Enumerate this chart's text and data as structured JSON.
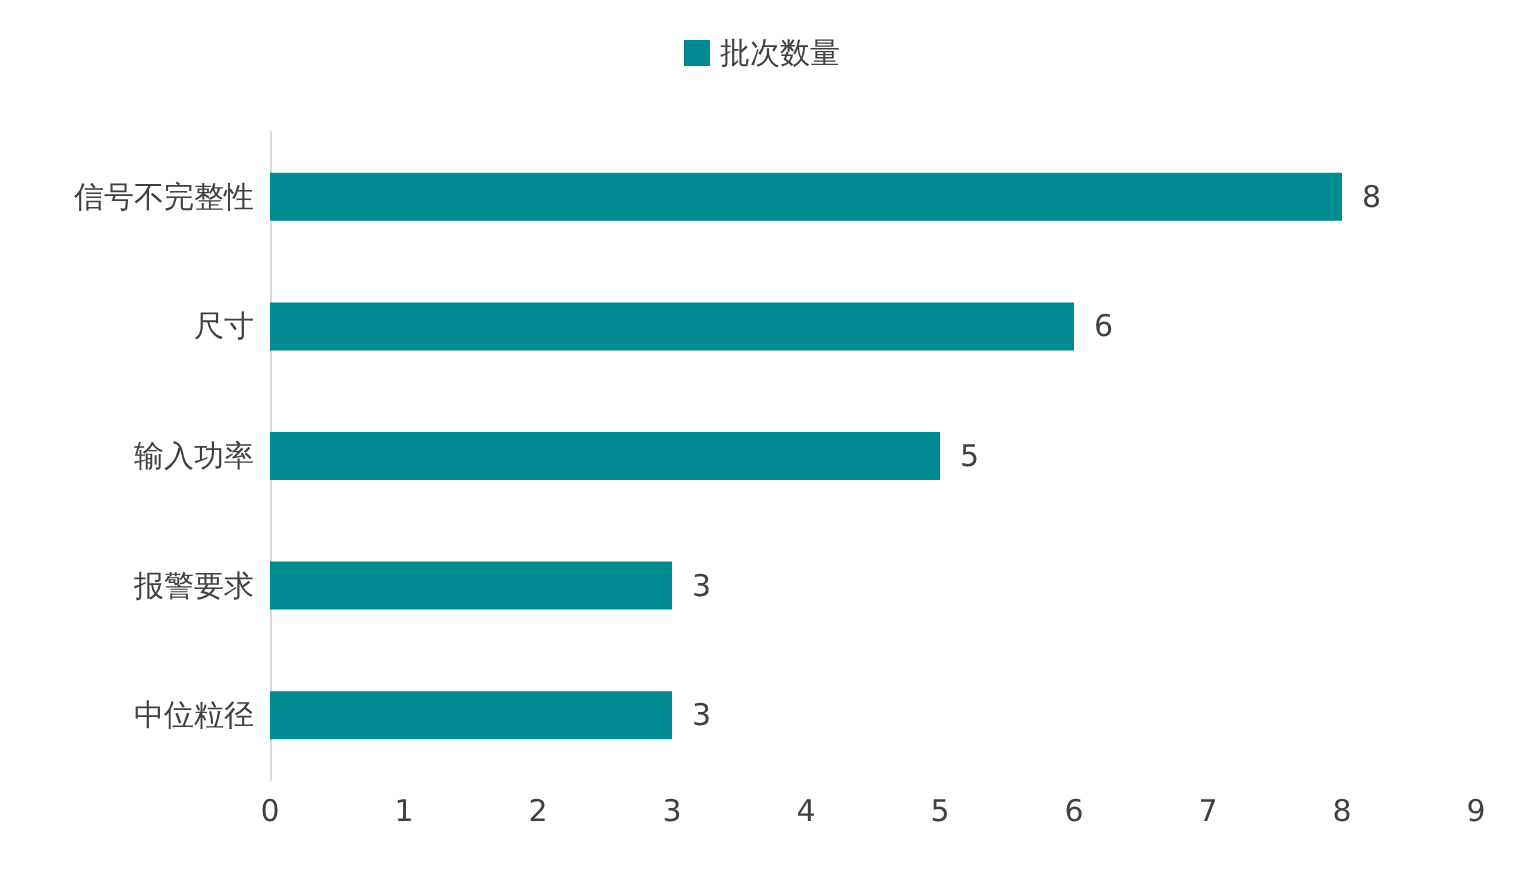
{
  "chart_data": {
    "type": "bar",
    "orientation": "horizontal",
    "categories": [
      "信号不完整性",
      "尺寸",
      "输入功率",
      "报警要求",
      "中位粒径"
    ],
    "series": [
      {
        "name": "批次数量",
        "color": "#008b93",
        "values": [
          8,
          6,
          5,
          3,
          3
        ]
      }
    ],
    "xlim": [
      0,
      9
    ],
    "xticks": [
      0,
      1,
      2,
      3,
      4,
      5,
      6,
      7,
      8,
      9
    ],
    "grid": false,
    "legend": "top",
    "data_labels": true
  }
}
